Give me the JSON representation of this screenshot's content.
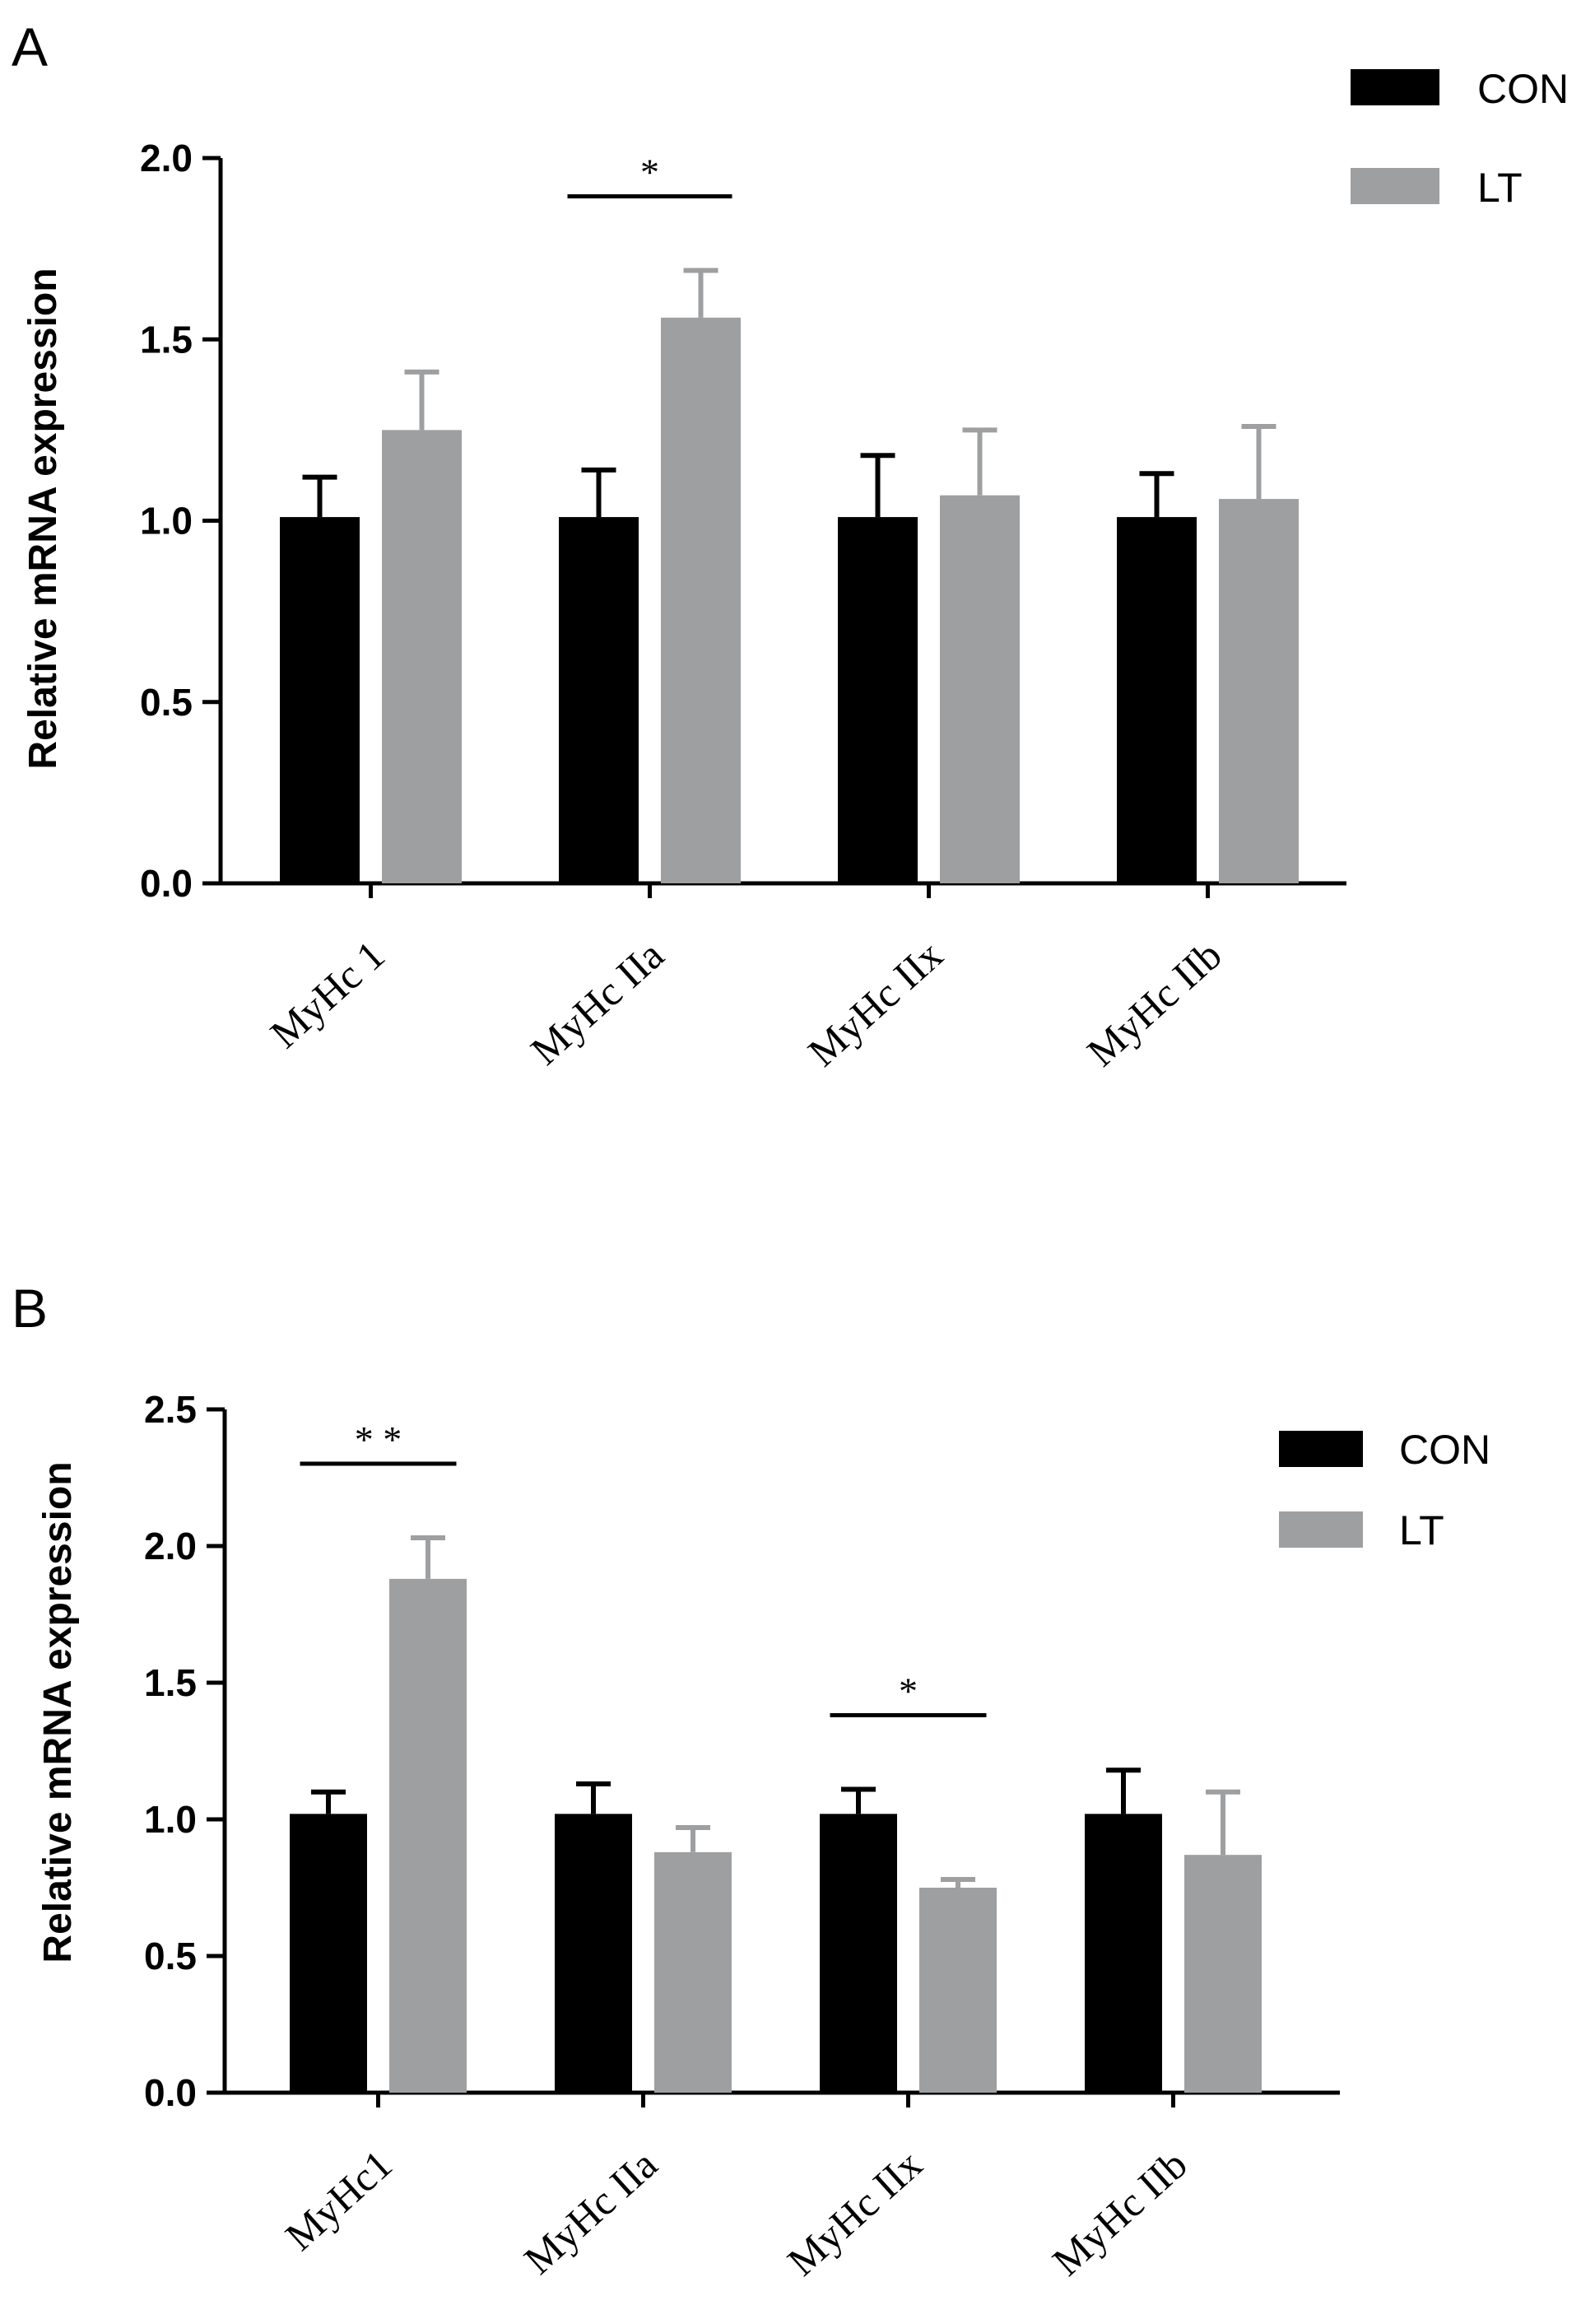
{
  "colors": {
    "CON": "#000000",
    "LT": "#9e9fa1",
    "axis": "#000000"
  },
  "chart_data": [
    {
      "panel_label": "A",
      "type": "bar",
      "ylabel": "Relative mRNA expression",
      "ylim": [
        0,
        2.0
      ],
      "yticks": [
        "0.0",
        "0.5",
        "1.0",
        "1.5",
        "2.0"
      ],
      "categories": [
        "MyHc 1",
        "MyHc IIa",
        "MyHc IIx",
        "MyHc IIb"
      ],
      "series": [
        {
          "name": "CON",
          "values": [
            1.01,
            1.01,
            1.01,
            1.01
          ],
          "errors": [
            0.11,
            0.13,
            0.17,
            0.12
          ]
        },
        {
          "name": "LT",
          "values": [
            1.25,
            1.56,
            1.07,
            1.06
          ],
          "errors": [
            0.16,
            0.13,
            0.18,
            0.2
          ]
        }
      ],
      "significance": [
        {
          "category_index": 1,
          "label": "*"
        }
      ],
      "legend": {
        "placement": "top-right",
        "entries": [
          "CON",
          "LT"
        ]
      }
    },
    {
      "panel_label": "B",
      "type": "bar",
      "ylabel": "Relative mRNA expression",
      "ylim": [
        0,
        2.5
      ],
      "yticks": [
        "0.0",
        "0.5",
        "1.0",
        "1.5",
        "2.0",
        "2.5"
      ],
      "categories": [
        "MyHc1",
        "MyHc IIa",
        "MyHc IIx",
        "MyHc IIb"
      ],
      "series": [
        {
          "name": "CON",
          "values": [
            1.02,
            1.02,
            1.02,
            1.02
          ],
          "errors": [
            0.08,
            0.11,
            0.09,
            0.16
          ]
        },
        {
          "name": "LT",
          "values": [
            1.88,
            0.88,
            0.75,
            0.87
          ],
          "errors": [
            0.15,
            0.09,
            0.03,
            0.23
          ]
        }
      ],
      "significance": [
        {
          "category_index": 0,
          "label": "* *"
        },
        {
          "category_index": 2,
          "label": "*"
        }
      ],
      "legend": {
        "placement": "top-right",
        "entries": [
          "CON",
          "LT"
        ]
      }
    }
  ]
}
